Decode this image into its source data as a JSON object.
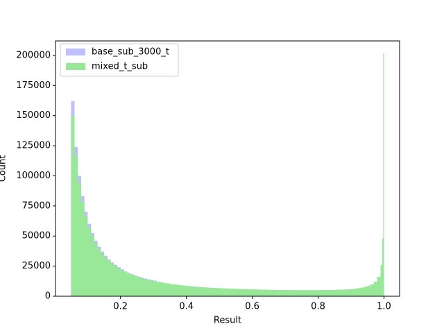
{
  "chart_data": {
    "type": "histogram",
    "xlabel": "Result",
    "ylabel": "Count",
    "bins": [
      0.05,
      0.06,
      0.07,
      0.08,
      0.09,
      0.1,
      0.11,
      0.12,
      0.13,
      0.14,
      0.15,
      0.16,
      0.17,
      0.18,
      0.19,
      0.2,
      0.21,
      0.22,
      0.23,
      0.24,
      0.25,
      0.26,
      0.27,
      0.28,
      0.29,
      0.3,
      0.31,
      0.32,
      0.33,
      0.34,
      0.35,
      0.36,
      0.37,
      0.38,
      0.39,
      0.4,
      0.41,
      0.42,
      0.43,
      0.44,
      0.45,
      0.46,
      0.47,
      0.48,
      0.49,
      0.5,
      0.51,
      0.52,
      0.53,
      0.54,
      0.55,
      0.56,
      0.57,
      0.58,
      0.59,
      0.6,
      0.61,
      0.62,
      0.63,
      0.64,
      0.65,
      0.66,
      0.67,
      0.68,
      0.69,
      0.7,
      0.71,
      0.72,
      0.73,
      0.74,
      0.75,
      0.76,
      0.77,
      0.78,
      0.79,
      0.8,
      0.81,
      0.82,
      0.83,
      0.84,
      0.85,
      0.86,
      0.87,
      0.88,
      0.89,
      0.9,
      0.91,
      0.92,
      0.93,
      0.94,
      0.95,
      0.96,
      0.97,
      0.98,
      0.99,
      0.995,
      0.998,
      1.0
    ],
    "series": [
      {
        "name": "base_sub_3000_t",
        "color": "#bfbfff",
        "values": [
          162000,
          124000,
          100000,
          83000,
          70000,
          60000,
          52500,
          46000,
          41000,
          37000,
          33500,
          30500,
          28000,
          26000,
          24000,
          22300,
          20500,
          19300,
          18200,
          17200,
          16300,
          15500,
          14700,
          14000,
          13400,
          12800,
          11800,
          11300,
          10800,
          10400,
          10000,
          9600,
          9300,
          9000,
          8700,
          8400,
          8200,
          7900,
          7700,
          7500,
          7300,
          7100,
          6900,
          6800,
          6600,
          6500,
          6400,
          6300,
          6200,
          6100,
          6000,
          5900,
          5800,
          5700,
          5600,
          5500,
          5500,
          5400,
          5300,
          5300,
          5200,
          5200,
          5100,
          5100,
          5000,
          5000,
          5000,
          4900,
          4900,
          4900,
          4900,
          4900,
          4900,
          4900,
          4900,
          5000,
          5000,
          5000,
          5100,
          5100,
          5200,
          5300,
          5400,
          5500,
          5700,
          5900,
          6200,
          6600,
          7100,
          7800,
          8700,
          10000,
          12000,
          16000,
          24000,
          30000,
          20000
        ]
      },
      {
        "name": "mixed_t_sub",
        "color": "#98e898",
        "values": [
          150000,
          116000,
          94000,
          78000,
          66000,
          57000,
          50000,
          44000,
          39000,
          35500,
          32000,
          29500,
          27000,
          25000,
          23000,
          21500,
          20000,
          18800,
          17700,
          16700,
          15800,
          15000,
          14200,
          13500,
          12900,
          12300,
          11800,
          11300,
          10800,
          10400,
          10000,
          9600,
          9300,
          9000,
          8700,
          8400,
          8200,
          7900,
          7700,
          7500,
          7300,
          7100,
          6900,
          6800,
          6600,
          6500,
          6400,
          6300,
          6200,
          6100,
          6000,
          5900,
          5800,
          5700,
          5600,
          5500,
          5500,
          5400,
          5300,
          5300,
          5200,
          5200,
          5100,
          5100,
          5000,
          5000,
          5000,
          4900,
          4900,
          4900,
          4900,
          4900,
          4900,
          4900,
          4900,
          5000,
          5000,
          5000,
          5100,
          5100,
          5200,
          5300,
          5400,
          5500,
          5700,
          5900,
          6200,
          6600,
          7100,
          7800,
          8700,
          10000,
          12000,
          16000,
          26000,
          48000,
          202000
        ]
      }
    ],
    "xlim": [
      0.0025,
      1.0475
    ],
    "ylim": [
      0,
      212100
    ],
    "xticks": [
      0.2,
      0.4,
      0.6,
      0.8,
      {
        "value": 1,
        "label": "1.0"
      }
    ],
    "yticks": [
      0,
      25000,
      50000,
      75000,
      100000,
      125000,
      150000,
      175000,
      200000
    ],
    "legend": "upper left"
  }
}
